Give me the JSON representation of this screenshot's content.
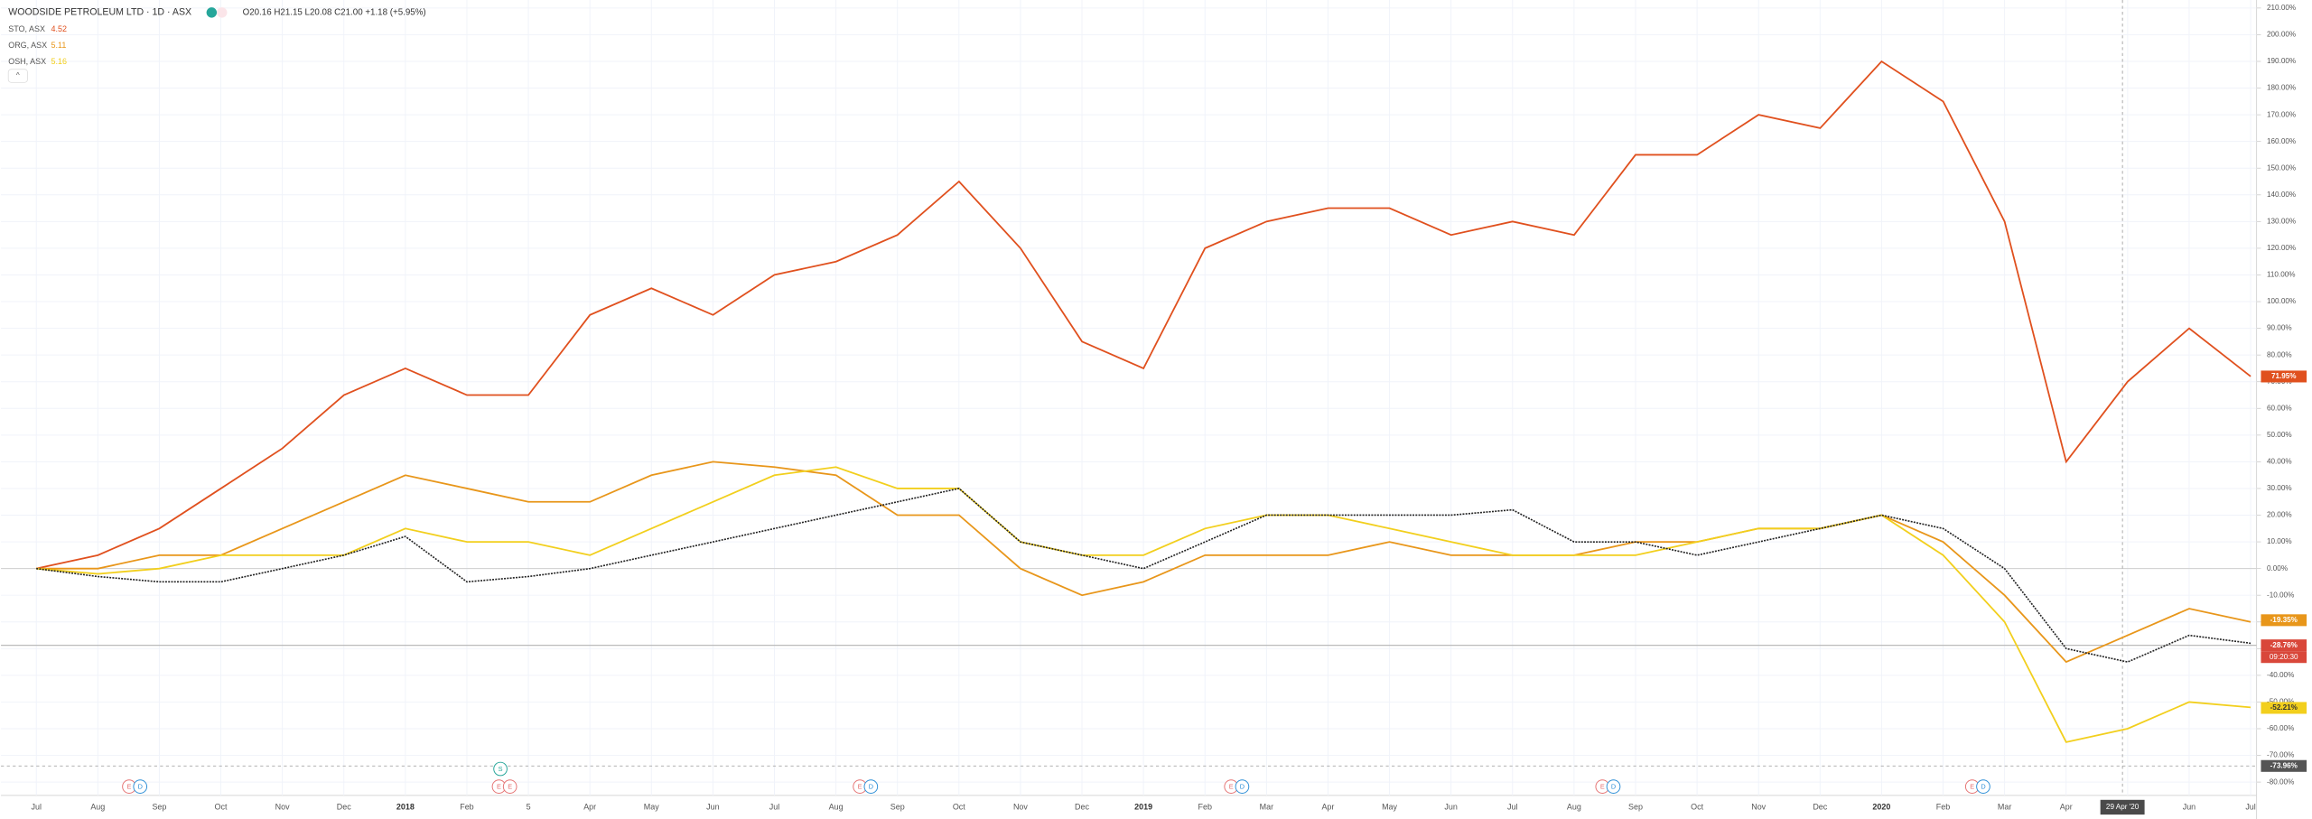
{
  "chart_data": {
    "type": "line",
    "title": "WOODSIDE PETROLEUM LTD · 1D · ASX",
    "ohlc": "O20.16 H21.15 L20.08 C21.00 +1.18 (+5.95%)",
    "categories": [
      "Jul",
      "Aug",
      "Sep",
      "Oct",
      "Nov",
      "Dec",
      "2018",
      "Feb",
      "5",
      "Apr",
      "May",
      "Jun",
      "Jul",
      "Aug",
      "Sep",
      "Oct",
      "Nov",
      "Dec",
      "2019",
      "Feb",
      "Mar",
      "Apr",
      "May",
      "Jun",
      "Jul",
      "Aug",
      "Sep",
      "Oct",
      "Nov",
      "Dec",
      "2020",
      "Feb",
      "Mar",
      "Apr",
      null,
      "Jun",
      "Jul"
    ],
    "ylim": [
      -85,
      213
    ],
    "yticks": [
      {
        "value": -80,
        "label": "-80.00%"
      },
      {
        "value": -70,
        "label": "-70.00%"
      },
      {
        "value": -60,
        "label": "-60.00%"
      },
      {
        "value": -50,
        "label": "-50.00%"
      },
      {
        "value": -40,
        "label": "-40.00%"
      },
      {
        "value": -30,
        "label": "-30.00%"
      },
      {
        "value": -20,
        "label": "-20.00%"
      },
      {
        "value": -10,
        "label": "-10.00%"
      },
      {
        "value": 0,
        "label": "0.00%"
      },
      {
        "value": 10,
        "label": "10.00%"
      },
      {
        "value": 20,
        "label": "20.00%"
      },
      {
        "value": 30,
        "label": "30.00%"
      },
      {
        "value": 40,
        "label": "40.00%"
      },
      {
        "value": 50,
        "label": "50.00%"
      },
      {
        "value": 60,
        "label": "60.00%"
      },
      {
        "value": 70,
        "label": "70.00%"
      },
      {
        "value": 80,
        "label": "80.00%"
      },
      {
        "value": 90,
        "label": "90.00%"
      },
      {
        "value": 100,
        "label": "100.00%"
      },
      {
        "value": 110,
        "label": "110.00%"
      },
      {
        "value": 120,
        "label": "120.00%"
      },
      {
        "value": 130,
        "label": "130.00%"
      },
      {
        "value": 140,
        "label": "140.00%"
      },
      {
        "value": 150,
        "label": "150.00%"
      },
      {
        "value": 160,
        "label": "160.00%"
      },
      {
        "value": 170,
        "label": "170.00%"
      },
      {
        "value": 180,
        "label": "180.00%"
      },
      {
        "value": 190,
        "label": "190.00%"
      },
      {
        "value": 200,
        "label": "200.00%"
      },
      {
        "value": 210,
        "label": "210.00%"
      }
    ],
    "grid": true,
    "series": [
      {
        "name": "STO, ASX",
        "price": "4.52",
        "color": "#e0501e",
        "values": [
          0,
          5,
          15,
          30,
          45,
          65,
          75,
          65,
          65,
          95,
          105,
          95,
          110,
          115,
          125,
          145,
          120,
          85,
          75,
          120,
          130,
          135,
          135,
          125,
          130,
          125,
          155,
          155,
          170,
          165,
          190,
          175,
          130,
          40,
          70,
          90,
          72
        ],
        "last": {
          "value": 71.95,
          "label": "71.95%"
        }
      },
      {
        "name": "ORG, ASX",
        "price": "5.11",
        "color": "#e8961a",
        "values": [
          0,
          0,
          5,
          5,
          15,
          25,
          35,
          30,
          25,
          25,
          35,
          40,
          38,
          35,
          20,
          20,
          0,
          -10,
          -5,
          5,
          5,
          5,
          10,
          5,
          5,
          5,
          10,
          10,
          15,
          15,
          20,
          10,
          -10,
          -35,
          -25,
          -15,
          -20
        ],
        "last": {
          "value": -19.35,
          "label": "-19.35%"
        }
      },
      {
        "name": "OSH, ASX",
        "price": "5.16",
        "color": "#f2cf1d",
        "values": [
          0,
          -2,
          0,
          5,
          5,
          5,
          15,
          10,
          10,
          5,
          15,
          25,
          35,
          38,
          30,
          30,
          10,
          5,
          5,
          15,
          20,
          20,
          15,
          10,
          5,
          5,
          5,
          10,
          15,
          15,
          20,
          5,
          -20,
          -65,
          -60,
          -50,
          -52
        ],
        "last": {
          "value": -52.21,
          "label": "-52.21%"
        }
      },
      {
        "color": "#222222",
        "values": [
          0,
          -3,
          -5,
          -5,
          0,
          5,
          12,
          -5,
          -3,
          0,
          5,
          10,
          15,
          20,
          25,
          30,
          10,
          5,
          0,
          10,
          20,
          20,
          20,
          20,
          22,
          10,
          10,
          5,
          10,
          15,
          20,
          15,
          0,
          -30,
          -35,
          -25,
          -28
        ],
        "last": {
          "value": -28.76,
          "label": "-28.76%"
        },
        "countdown": "09:20:30"
      }
    ],
    "low_line": {
      "value": -73.96,
      "label": "-73.96%"
    },
    "crosshair": "29 Apr '20",
    "events": [
      [
        "E",
        "D"
      ],
      [
        "E",
        "E",
        "S"
      ],
      [
        "E",
        "D"
      ],
      [
        "E",
        "D"
      ],
      [
        "E",
        "D"
      ],
      [
        "E",
        "D"
      ]
    ]
  }
}
